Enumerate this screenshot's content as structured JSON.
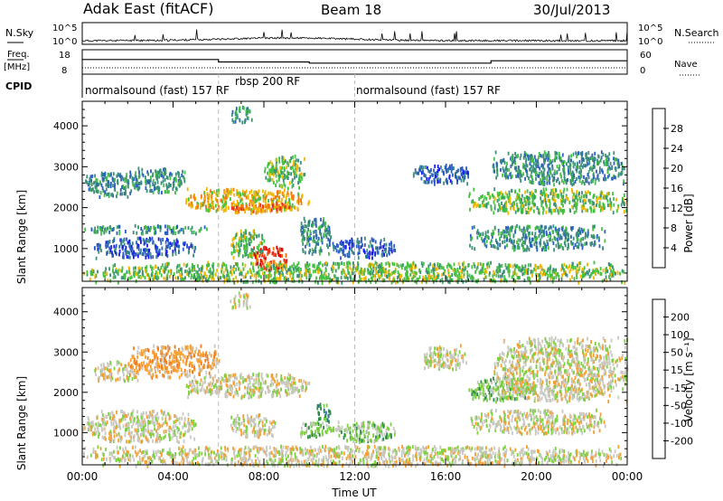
{
  "header": {
    "station": "Adak East (fitACF)",
    "beam": "Beam 18",
    "date": "30/Jul/2013"
  },
  "labels": {
    "nsky": "N.Sky",
    "nsky_top": "10^5",
    "nsky_bottom": "10^0",
    "nsearch": "N.Search",
    "nsearch_top": "10^5",
    "nsearch_bottom": "10^0",
    "freq": "Freq.",
    "freq_unit": "[MHz]",
    "freq_top": "18",
    "freq_bottom": "8",
    "nave": "Nave",
    "nave_top": "60",
    "nave_bottom": "0",
    "cpid": "CPID",
    "cpid_seg1": "normalsound (fast) 157 RF",
    "cpid_seg2": "rbsp 200 RF",
    "cpid_seg3": "normalsound (fast) 157 RF",
    "ylabel": "Slant Range [km]",
    "xlabel": "Time UT",
    "power_label": "Power [dB]",
    "velocity_label": "Velocity [m s⁻¹]"
  },
  "chart_data": {
    "type": "heatmap",
    "x_ticks": [
      "00:00",
      "04:00",
      "08:00",
      "12:00",
      "16:00",
      "20:00",
      "00:00"
    ],
    "x_range_hours": [
      0,
      24
    ],
    "y_ticks": [
      1000,
      2000,
      3000,
      4000
    ],
    "y_range_km": [
      200,
      4600
    ],
    "cpid_boundaries_hours": [
      6,
      12
    ],
    "frequency_steps": [
      {
        "start": 0,
        "end": 6,
        "freq": 14
      },
      {
        "start": 6,
        "end": 10,
        "freq": 13
      },
      {
        "start": 10,
        "end": 18,
        "freq": 12.5
      },
      {
        "start": 18,
        "end": 24,
        "freq": 13.5
      }
    ],
    "power_colorbar": {
      "ticks": [
        4,
        8,
        12,
        16,
        20,
        24,
        28
      ],
      "colors": [
        "#1a1aee",
        "#2b5fc0",
        "#3c8f7a",
        "#46c043",
        "#f2b500",
        "#f07a10",
        "#e83020",
        "#e00000"
      ]
    },
    "velocity_colorbar": {
      "ticks": [
        "-200",
        "-100",
        "-50",
        "-15",
        "15",
        "50",
        "100",
        "200"
      ],
      "colors": [
        "#ee1010",
        "#f24818",
        "#f57a18",
        "#f5a030",
        "#c8c8c0",
        "#7dd040",
        "#2c8a4c",
        "#2e70b0",
        "#1a30c8"
      ]
    },
    "power_regions": [
      {
        "t0": 0.0,
        "t1": 2.5,
        "r0": 2300,
        "r1": 2900,
        "level": 2
      },
      {
        "t0": 0.0,
        "t1": 5.5,
        "r0": 1400,
        "r1": 1600,
        "level": 2
      },
      {
        "t0": 0.5,
        "t1": 5.0,
        "r0": 800,
        "r1": 1300,
        "level": 1
      },
      {
        "t0": 2.0,
        "t1": 4.5,
        "r0": 2400,
        "r1": 3000,
        "level": 2
      },
      {
        "t0": 4.5,
        "t1": 10.0,
        "r0": 1900,
        "r1": 2500,
        "level": 4
      },
      {
        "t0": 6.5,
        "t1": 9.5,
        "r0": 1950,
        "r1": 2150,
        "level": 5
      },
      {
        "t0": 8.0,
        "t1": 9.8,
        "r0": 2500,
        "r1": 3300,
        "level": 3
      },
      {
        "t0": 6.5,
        "t1": 7.5,
        "r0": 4100,
        "r1": 4500,
        "level": 2
      },
      {
        "t0": 7.5,
        "t1": 9.0,
        "r0": 500,
        "r1": 1100,
        "level": 6
      },
      {
        "t0": 6.5,
        "t1": 8.0,
        "r0": 800,
        "r1": 1500,
        "level": 3
      },
      {
        "t0": 9.5,
        "t1": 11.0,
        "r0": 900,
        "r1": 1800,
        "level": 2
      },
      {
        "t0": 11.0,
        "t1": 13.8,
        "r0": 800,
        "r1": 1300,
        "level": 1
      },
      {
        "t0": 14.5,
        "t1": 17.0,
        "r0": 2600,
        "r1": 3100,
        "level": 1
      },
      {
        "t0": 17.0,
        "t1": 24.0,
        "r0": 1900,
        "r1": 2500,
        "level": 3
      },
      {
        "t0": 18.0,
        "t1": 24.0,
        "r0": 2600,
        "r1": 3400,
        "level": 2
      },
      {
        "t0": 17.0,
        "t1": 23.0,
        "r0": 1000,
        "r1": 1600,
        "level": 2
      },
      {
        "t0": 0.0,
        "t1": 24.0,
        "r0": 200,
        "r1": 700,
        "level": 3
      }
    ],
    "velocity_regions": [
      {
        "t0": 0.0,
        "t1": 5.0,
        "r0": 800,
        "r1": 1600,
        "level": 4
      },
      {
        "t0": 0.5,
        "t1": 2.5,
        "r0": 2300,
        "r1": 2800,
        "level": 4
      },
      {
        "t0": 2.0,
        "t1": 6.0,
        "r0": 2400,
        "r1": 3200,
        "level": 3
      },
      {
        "t0": 4.5,
        "t1": 10.0,
        "r0": 1900,
        "r1": 2500,
        "level": 4
      },
      {
        "t0": 6.5,
        "t1": 7.5,
        "r0": 4100,
        "r1": 4500,
        "level": 4
      },
      {
        "t0": 6.5,
        "t1": 8.5,
        "r0": 900,
        "r1": 1500,
        "level": 4
      },
      {
        "t0": 9.5,
        "t1": 11.0,
        "r0": 900,
        "r1": 1300,
        "level": 5
      },
      {
        "t0": 10.3,
        "t1": 10.9,
        "r0": 1300,
        "r1": 1800,
        "level": 6
      },
      {
        "t0": 11.0,
        "t1": 13.8,
        "r0": 800,
        "r1": 1300,
        "level": 5
      },
      {
        "t0": 15.0,
        "t1": 17.0,
        "r0": 2600,
        "r1": 3200,
        "level": 4
      },
      {
        "t0": 17.0,
        "t1": 20.0,
        "r0": 1800,
        "r1": 2400,
        "level": 5
      },
      {
        "t0": 18.0,
        "t1": 24.0,
        "r0": 1800,
        "r1": 3400,
        "level": 4
      },
      {
        "t0": 17.0,
        "t1": 23.0,
        "r0": 1000,
        "r1": 1600,
        "level": 4
      },
      {
        "t0": 0.0,
        "t1": 24.0,
        "r0": 200,
        "r1": 700,
        "level": 4
      }
    ]
  }
}
